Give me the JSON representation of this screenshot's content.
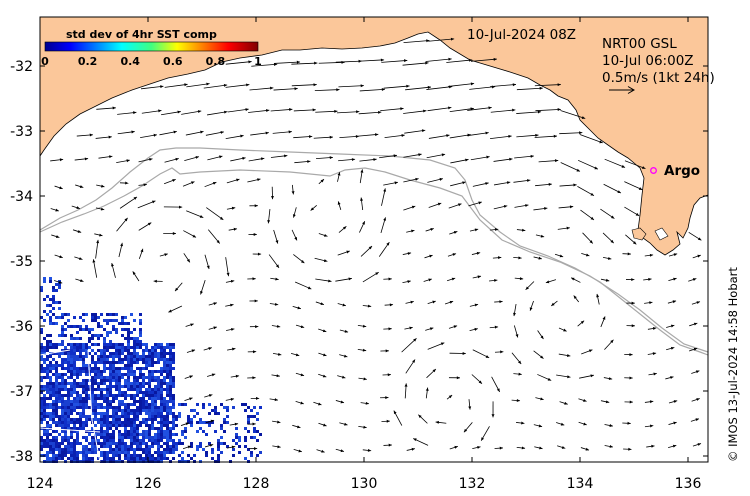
{
  "map": {
    "date_stamp": "10-Jul-2024 08Z",
    "product": {
      "line1": "NRT00 GSL",
      "line2": "10-Jul 06:00Z",
      "line3": "0.5m/s (1kt 24h)"
    },
    "float_label": "Argo",
    "credit": "© IMOS 13-Jul-2024 14:58 Hobart",
    "colorbar": {
      "title": "std dev of 4hr SST comp",
      "ticks": [
        "0",
        "0.2",
        "0.4",
        "0.6",
        "0.8",
        "1"
      ]
    },
    "x_ticks": [
      "124",
      "126",
      "128",
      "130",
      "132",
      "134",
      "136"
    ],
    "y_ticks": [
      "-32",
      "-33",
      "-34",
      "-35",
      "-36",
      "-37",
      "-38"
    ],
    "colors": {
      "land": "#fbc79a",
      "ocean": "#ffffff",
      "isobath": "#a9a9a9",
      "float_marker": "#ff00ff",
      "noise_blue": "#0a1fb0"
    }
  }
}
